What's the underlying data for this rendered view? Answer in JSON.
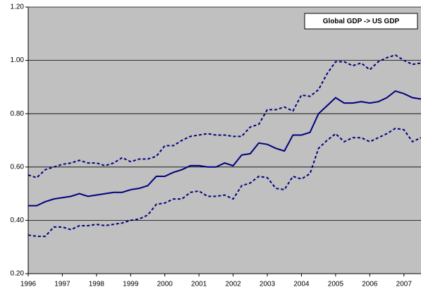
{
  "chart_data": {
    "type": "line",
    "title": "Global GDP -> US GDP",
    "x": [
      1996,
      1996.25,
      1996.5,
      1996.75,
      1997,
      1997.25,
      1997.5,
      1997.75,
      1998,
      1998.25,
      1998.5,
      1998.75,
      1999,
      1999.25,
      1999.5,
      1999.75,
      2000,
      2000.25,
      2000.5,
      2000.75,
      2001,
      2001.25,
      2001.5,
      2001.75,
      2002,
      2002.25,
      2002.5,
      2002.75,
      2003,
      2003.25,
      2003.5,
      2003.75,
      2004,
      2004.25,
      2004.5,
      2004.75,
      2005,
      2005.25,
      2005.5,
      2005.75,
      2006,
      2006.25,
      2006.5,
      2006.75,
      2007,
      2007.25,
      2007.5
    ],
    "series": [
      {
        "color": "#000080",
        "dash": true,
        "values": [
          0.57,
          0.56,
          0.59,
          0.6,
          0.61,
          0.615,
          0.625,
          0.615,
          0.615,
          0.605,
          0.615,
          0.635,
          0.62,
          0.63,
          0.63,
          0.64,
          0.68,
          0.68,
          0.7,
          0.715,
          0.72,
          0.725,
          0.72,
          0.72,
          0.715,
          0.715,
          0.75,
          0.76,
          0.815,
          0.815,
          0.825,
          0.81,
          0.87,
          0.865,
          0.89,
          0.95,
          0.995,
          0.995,
          0.98,
          0.99,
          0.965,
          0.995,
          1.01,
          1.02,
          1.0,
          0.985,
          0.99
        ]
      },
      {
        "color": "#000080",
        "dash": false,
        "values": [
          0.455,
          0.455,
          0.47,
          0.48,
          0.485,
          0.49,
          0.5,
          0.49,
          0.495,
          0.5,
          0.505,
          0.505,
          0.515,
          0.52,
          0.53,
          0.565,
          0.565,
          0.58,
          0.59,
          0.605,
          0.605,
          0.6,
          0.6,
          0.615,
          0.605,
          0.645,
          0.65,
          0.69,
          0.685,
          0.67,
          0.66,
          0.72,
          0.72,
          0.73,
          0.8,
          0.83,
          0.86,
          0.84,
          0.84,
          0.845,
          0.84,
          0.845,
          0.86,
          0.885,
          0.875,
          0.86,
          0.855
        ]
      },
      {
        "color": "#000080",
        "dash": true,
        "values": [
          0.345,
          0.34,
          0.34,
          0.375,
          0.375,
          0.365,
          0.38,
          0.38,
          0.385,
          0.38,
          0.385,
          0.39,
          0.4,
          0.405,
          0.42,
          0.46,
          0.465,
          0.48,
          0.48,
          0.505,
          0.51,
          0.49,
          0.49,
          0.495,
          0.48,
          0.53,
          0.54,
          0.565,
          0.56,
          0.52,
          0.515,
          0.565,
          0.555,
          0.575,
          0.67,
          0.7,
          0.725,
          0.695,
          0.71,
          0.71,
          0.695,
          0.71,
          0.725,
          0.745,
          0.74,
          0.695,
          0.71
        ]
      }
    ],
    "xlim": [
      1996,
      2007.5
    ],
    "xticks": [
      1996,
      1997,
      1998,
      1999,
      2000,
      2001,
      2002,
      2003,
      2004,
      2005,
      2006,
      2007
    ],
    "ylim": [
      0.2,
      1.2
    ],
    "yticks": [
      {
        "value": 0.2,
        "label": "0.20"
      },
      {
        "value": 0.4,
        "label": "0.40"
      },
      {
        "value": 0.6,
        "label": "0.60"
      },
      {
        "value": 0.8,
        "label": "0.80"
      },
      {
        "value": 1.0,
        "label": "1.00"
      },
      {
        "value": 1.2,
        "label": "1.20"
      }
    ],
    "grid": true,
    "background": "#c0c0c0"
  }
}
